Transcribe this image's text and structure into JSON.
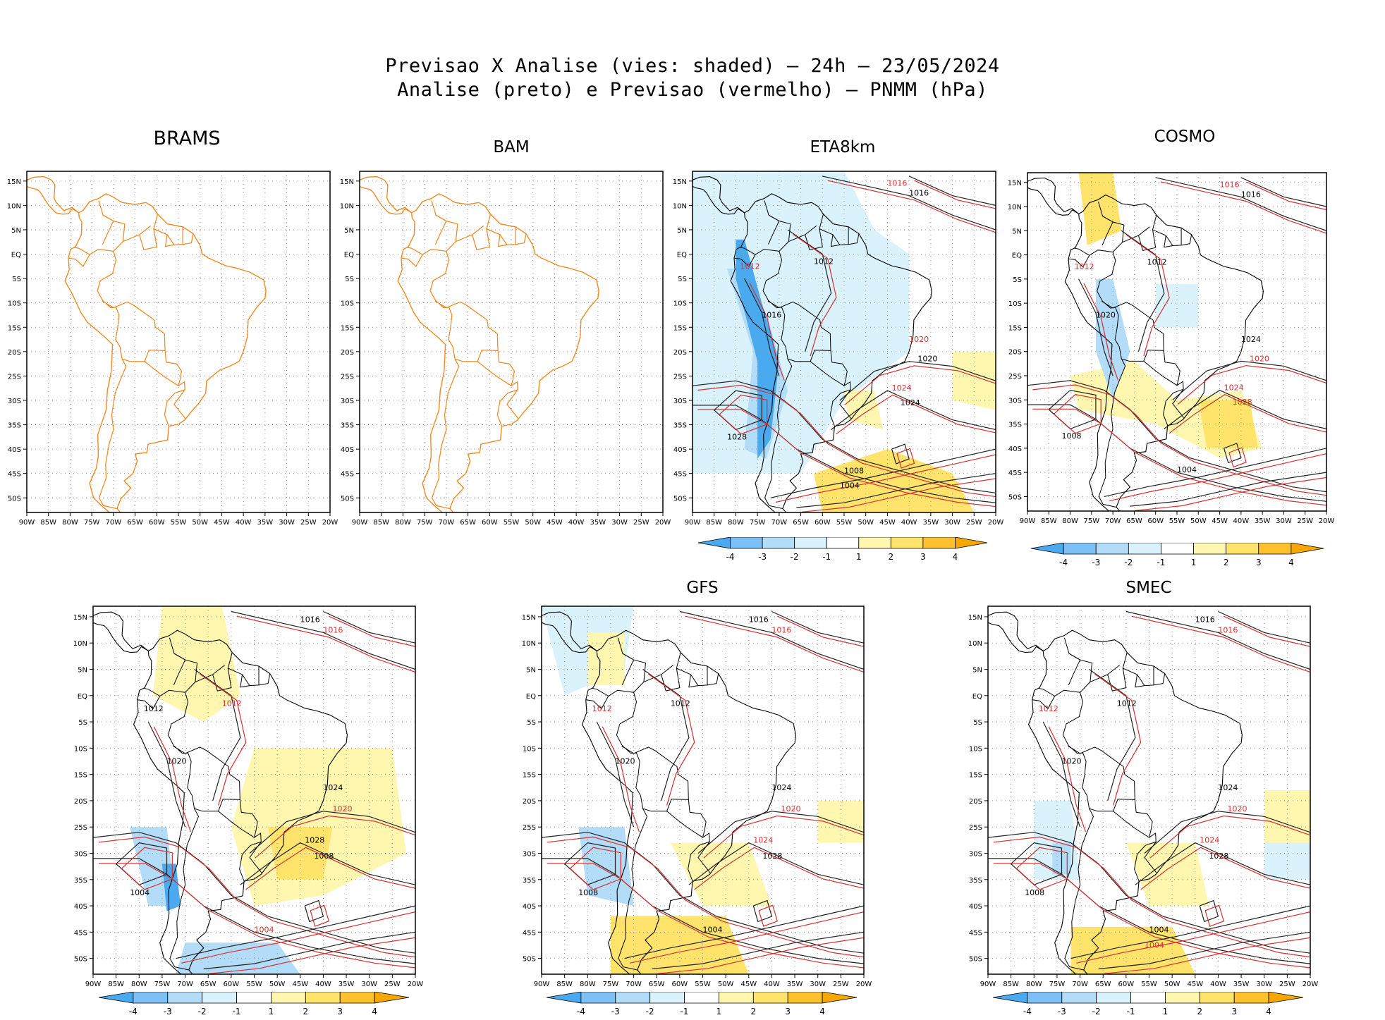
{
  "figure": {
    "title_line1": "Previsao X Analise (vies: shaded) – 24h – 23/05/2024",
    "title_line2": "Analise (preto) e Previsao (vermelho) – PNMM (hPa)"
  },
  "axes": {
    "lon_labels": [
      "90W",
      "85W",
      "80W",
      "75W",
      "70W",
      "65W",
      "60W",
      "55W",
      "50W",
      "45W",
      "40W",
      "35W",
      "30W",
      "25W",
      "20W"
    ],
    "lat_labels": [
      "15N",
      "10N",
      "5N",
      "EQ",
      "5S",
      "10S",
      "15S",
      "20S",
      "25S",
      "30S",
      "35S",
      "40S",
      "45S",
      "50S"
    ]
  },
  "colorbar": {
    "labels": [
      "-4",
      "-3",
      "-2",
      "-1",
      "1",
      "2",
      "3",
      "4"
    ],
    "colors": [
      "#4aaaf0",
      "#7cc0f5",
      "#b2dcf7",
      "#d9f2fb",
      "#ffffff",
      "#fff6b0",
      "#ffe36a",
      "#ffc22e",
      "#f6a800"
    ]
  },
  "panels": [
    {
      "name": "BRAMS",
      "has_colorbar": false,
      "isobars": []
    },
    {
      "name": "BAM",
      "has_colorbar": false,
      "isobars": []
    },
    {
      "name": "ETA8km",
      "has_colorbar": true,
      "isobars": [
        {
          "value": "1016",
          "color": "red"
        },
        {
          "value": "1016",
          "color": "black"
        },
        {
          "value": "1012",
          "color": "black"
        },
        {
          "value": "1012",
          "color": "red"
        },
        {
          "value": "1016",
          "color": "black"
        },
        {
          "value": "1020",
          "color": "black"
        },
        {
          "value": "1020",
          "color": "red"
        },
        {
          "value": "1024",
          "color": "red"
        },
        {
          "value": "1024",
          "color": "black"
        },
        {
          "value": "1028",
          "color": "black"
        },
        {
          "value": "1008",
          "color": "black"
        },
        {
          "value": "1004",
          "color": "black"
        }
      ]
    },
    {
      "name": "COSMO",
      "has_colorbar": true,
      "isobars": [
        {
          "value": "1016",
          "color": "red"
        },
        {
          "value": "1016",
          "color": "black"
        },
        {
          "value": "1012",
          "color": "black"
        },
        {
          "value": "1012",
          "color": "red"
        },
        {
          "value": "1020",
          "color": "black"
        },
        {
          "value": "1020",
          "color": "red"
        },
        {
          "value": "1024",
          "color": "black"
        },
        {
          "value": "1024",
          "color": "red"
        },
        {
          "value": "1028",
          "color": "red"
        },
        {
          "value": "1008",
          "color": "black"
        },
        {
          "value": "1004",
          "color": "black"
        }
      ]
    },
    {
      "name": "",
      "has_colorbar": true,
      "isobars": [
        {
          "value": "1016",
          "color": "black"
        },
        {
          "value": "1016",
          "color": "red"
        },
        {
          "value": "1012",
          "color": "red"
        },
        {
          "value": "1012",
          "color": "black"
        },
        {
          "value": "1020",
          "color": "black"
        },
        {
          "value": "1020",
          "color": "red"
        },
        {
          "value": "1024",
          "color": "black"
        },
        {
          "value": "1028",
          "color": "black"
        },
        {
          "value": "1008",
          "color": "black"
        },
        {
          "value": "1004",
          "color": "black"
        },
        {
          "value": "1004",
          "color": "red"
        }
      ]
    },
    {
      "name": "GFS",
      "has_colorbar": true,
      "isobars": [
        {
          "value": "1016",
          "color": "black"
        },
        {
          "value": "1016",
          "color": "red"
        },
        {
          "value": "1012",
          "color": "black"
        },
        {
          "value": "1012",
          "color": "red"
        },
        {
          "value": "1020",
          "color": "black"
        },
        {
          "value": "1020",
          "color": "red"
        },
        {
          "value": "1024",
          "color": "black"
        },
        {
          "value": "1024",
          "color": "red"
        },
        {
          "value": "1028",
          "color": "black"
        },
        {
          "value": "1008",
          "color": "black"
        },
        {
          "value": "1004",
          "color": "black"
        }
      ]
    },
    {
      "name": "SMEC",
      "has_colorbar": true,
      "isobars": [
        {
          "value": "1016",
          "color": "black"
        },
        {
          "value": "1016",
          "color": "red"
        },
        {
          "value": "1012",
          "color": "black"
        },
        {
          "value": "1012",
          "color": "red"
        },
        {
          "value": "1020",
          "color": "black"
        },
        {
          "value": "1020",
          "color": "red"
        },
        {
          "value": "1024",
          "color": "black"
        },
        {
          "value": "1024",
          "color": "red"
        },
        {
          "value": "1028",
          "color": "black"
        },
        {
          "value": "1008",
          "color": "black"
        },
        {
          "value": "1004",
          "color": "black"
        },
        {
          "value": "1004",
          "color": "red"
        }
      ]
    }
  ]
}
